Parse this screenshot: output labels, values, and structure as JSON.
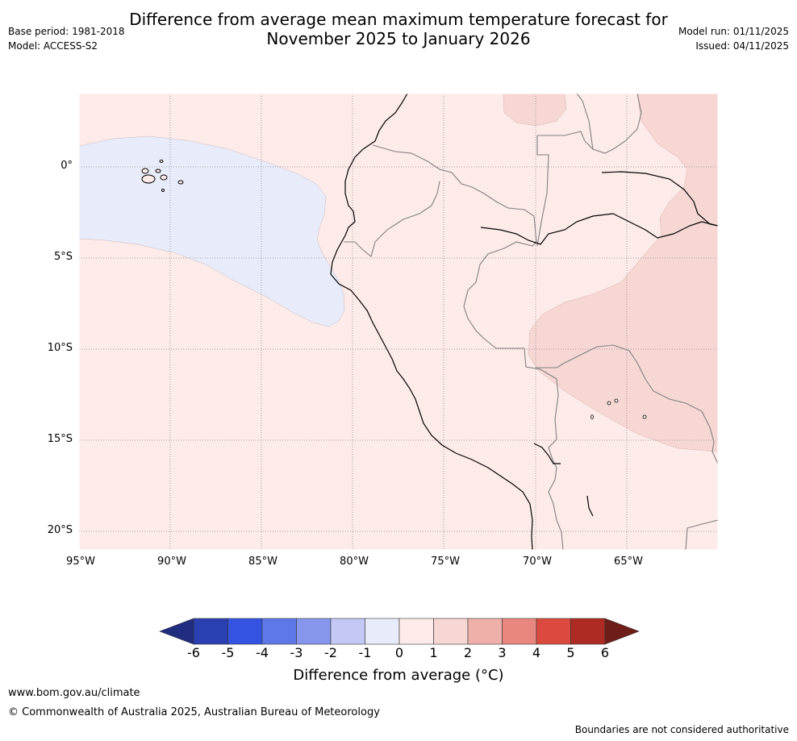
{
  "header": {
    "title_line1": "Difference from average mean maximum temperature forecast for",
    "title_line2": "November 2025 to January 2026",
    "base_period": "Base period: 1981-2018",
    "model": "Model: ACCESS-S2",
    "model_run": "Model run: 01/11/2025",
    "issued": "Issued: 04/11/2025"
  },
  "map": {
    "lon_ticks": [
      "95°W",
      "90°W",
      "85°W",
      "80°W",
      "75°W",
      "70°W",
      "65°W"
    ],
    "lat_ticks": [
      "0°",
      "5°S",
      "10°S",
      "15°S",
      "20°S"
    ],
    "region_fill_colors": {
      "band_-1_0": "#e8ecfa",
      "band_0_1": "#fcebe9",
      "band_1_2": "#f6d7d4"
    }
  },
  "colorbar": {
    "title": "Difference from average (°C)",
    "labels": [
      "-6",
      "-5",
      "-4",
      "-3",
      "-2",
      "-1",
      "0",
      "1",
      "2",
      "3",
      "4",
      "5",
      "6"
    ],
    "colors": [
      "#202c80",
      "#2a3fb1",
      "#3553e3",
      "#5e78e8",
      "#8596ec",
      "#c3c9f4",
      "#e8ecfa",
      "#fcebe9",
      "#f6d7d4",
      "#f0b0aa",
      "#e8877f",
      "#dc4a3f",
      "#ad2b23",
      "#6f1d18"
    ]
  },
  "footer": {
    "website": "www.bom.gov.au/climate",
    "copyright": "© Commonwealth of Australia 2025, Australian Bureau of Meteorology",
    "disclaimer": "Boundaries are not considered authoritative"
  }
}
